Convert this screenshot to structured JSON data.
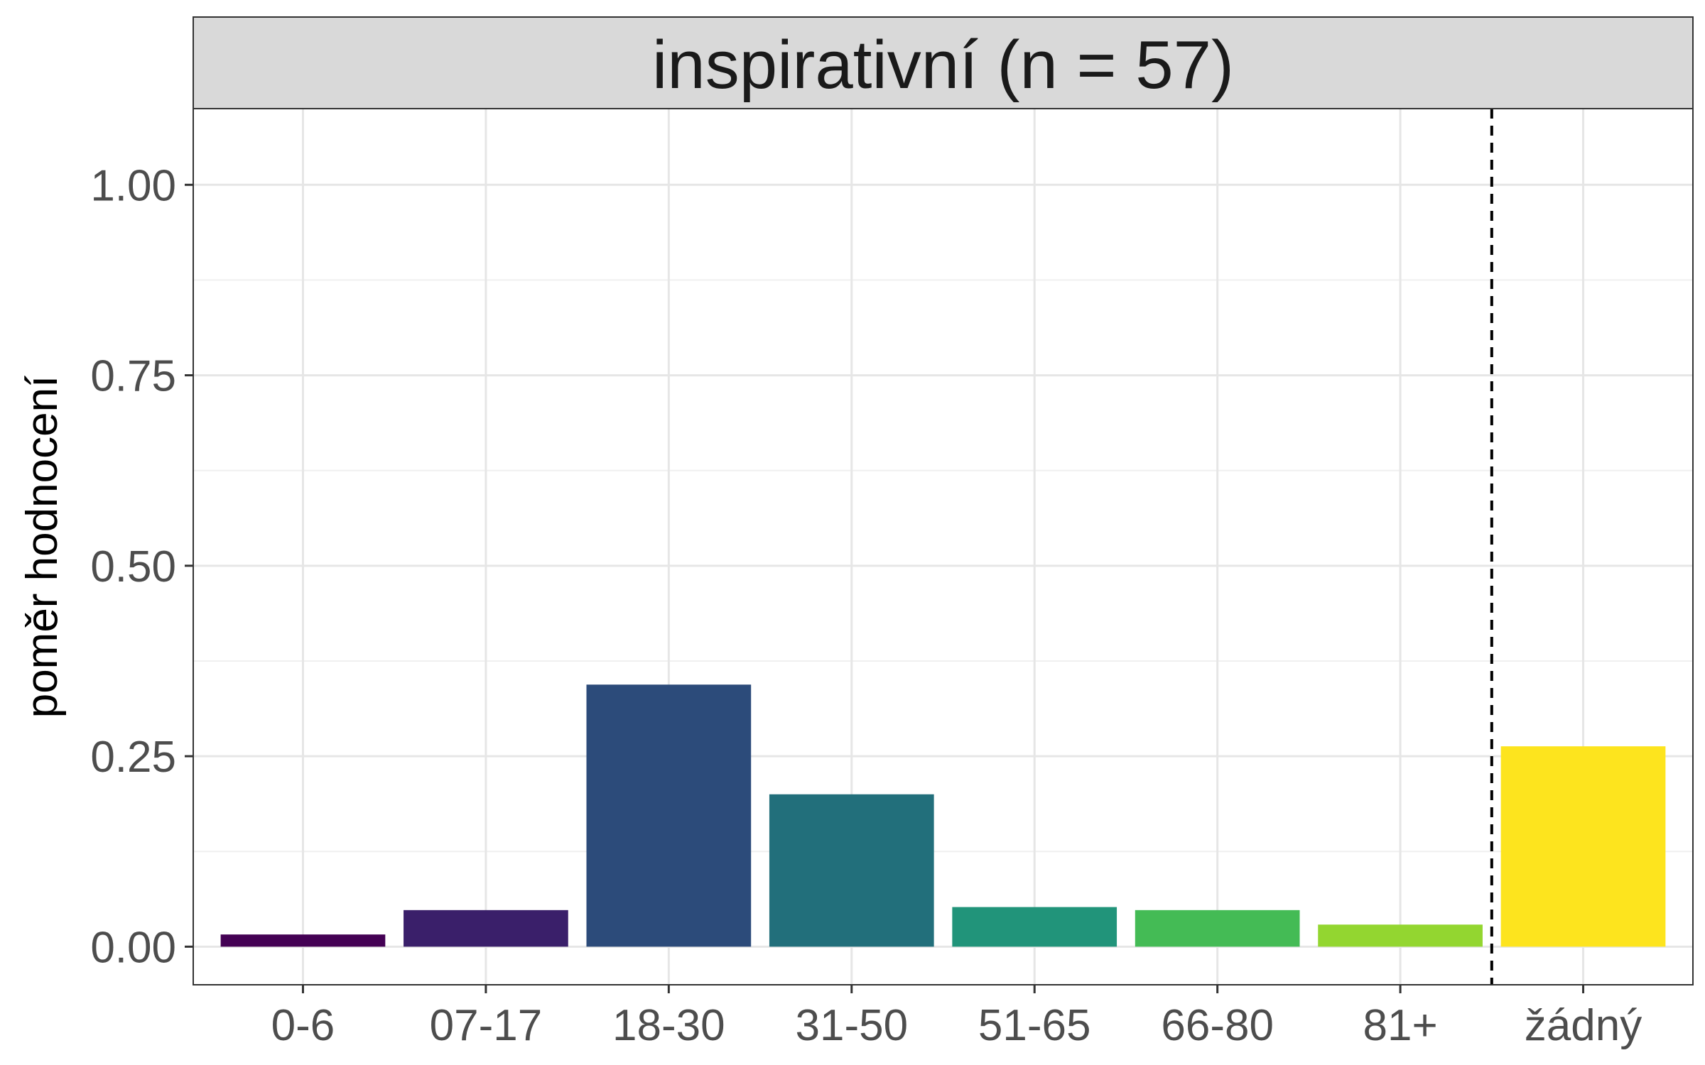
{
  "chart_data": {
    "type": "bar",
    "facet_label": "inspirativní (n = 57)",
    "title": "",
    "xlabel": "",
    "ylabel": "poměr hodnocení",
    "ylim": [
      -0.05,
      1.1
    ],
    "yticks": [
      0,
      0.25,
      0.5,
      0.75,
      1
    ],
    "ytick_labels": [
      "0.00",
      "0.25",
      "0.50",
      "0.75",
      "1.00"
    ],
    "categories": [
      "0-6",
      "07-17",
      "18-30",
      "31-50",
      "51-65",
      "66-80",
      "81+",
      "žádný"
    ],
    "values": [
      0.016,
      0.048,
      0.344,
      0.2,
      0.052,
      0.048,
      0.029,
      0.263
    ],
    "colors": [
      "#440154",
      "#3a1f6a",
      "#2c4b7a",
      "#226f7b",
      "#21947a",
      "#44bb55",
      "#93d630",
      "#fde41e"
    ],
    "dashed_vline_after_category": "81+",
    "grid": true,
    "legend": "none"
  }
}
